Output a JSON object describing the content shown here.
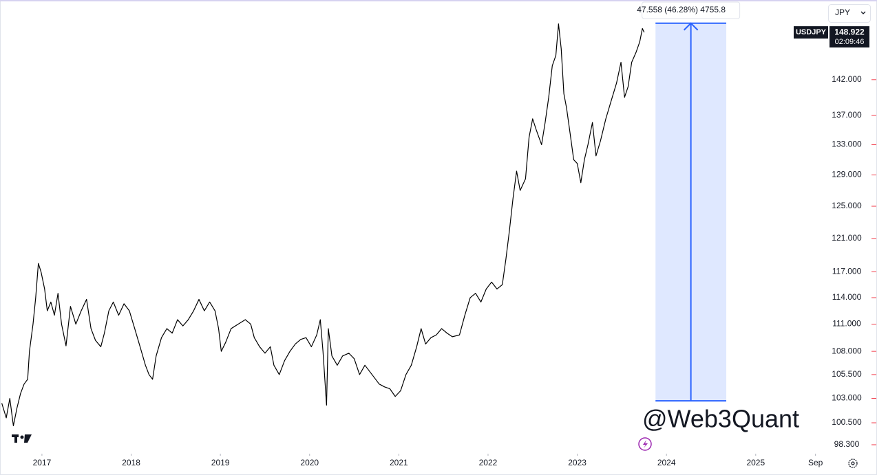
{
  "chart_data": {
    "type": "line",
    "symbol": "USDJPY",
    "currency": "JPY",
    "countdown": "02:09:46",
    "watermark": "@Web3Quant",
    "log_scale": true,
    "x": [
      2016.55,
      2016.6,
      2016.64,
      2016.68,
      2016.72,
      2016.76,
      2016.8,
      2016.84,
      2016.86,
      2016.9,
      2016.93,
      2016.96,
      2016.99,
      2017.03,
      2017.06,
      2017.1,
      2017.14,
      2017.18,
      2017.22,
      2017.27,
      2017.32,
      2017.38,
      2017.44,
      2017.5,
      2017.55,
      2017.6,
      2017.66,
      2017.7,
      2017.75,
      2017.8,
      2017.86,
      2017.92,
      2017.98,
      2018.04,
      2018.1,
      2018.16,
      2018.2,
      2018.24,
      2018.28,
      2018.34,
      2018.4,
      2018.46,
      2018.52,
      2018.58,
      2018.64,
      2018.7,
      2018.76,
      2018.82,
      2018.88,
      2018.94,
      2018.98,
      2019.01,
      2019.06,
      2019.12,
      2019.2,
      2019.28,
      2019.34,
      2019.38,
      2019.44,
      2019.5,
      2019.56,
      2019.6,
      2019.66,
      2019.72,
      2019.78,
      2019.84,
      2019.9,
      2019.96,
      2020.02,
      2020.08,
      2020.12,
      2020.15,
      2020.19,
      2020.21,
      2020.25,
      2020.31,
      2020.37,
      2020.44,
      2020.5,
      2020.56,
      2020.62,
      2020.7,
      2020.78,
      2020.84,
      2020.9,
      2020.96,
      2021.02,
      2021.08,
      2021.14,
      2021.2,
      2021.25,
      2021.3,
      2021.36,
      2021.42,
      2021.48,
      2021.54,
      2021.6,
      2021.68,
      2021.74,
      2021.8,
      2021.86,
      2021.92,
      2021.98,
      2022.04,
      2022.1,
      2022.16,
      2022.2,
      2022.24,
      2022.28,
      2022.32,
      2022.36,
      2022.42,
      2022.46,
      2022.5,
      2022.54,
      2022.6,
      2022.64,
      2022.68,
      2022.72,
      2022.76,
      2022.79,
      2022.82,
      2022.85,
      2022.88,
      2022.92,
      2022.96,
      2023.0,
      2023.04,
      2023.08,
      2023.12,
      2023.17,
      2023.21,
      2023.26,
      2023.32,
      2023.38,
      2023.44,
      2023.49,
      2023.53,
      2023.57,
      2023.61,
      2023.66,
      2023.7,
      2023.73,
      2023.75
    ],
    "series": [
      {
        "name": "USDJPY",
        "color": "#000000",
        "values": [
          102.5,
          101,
          103,
          100.2,
          102,
          103.5,
          104.5,
          105,
          108,
          111,
          114,
          118,
          117,
          115,
          112.5,
          113.5,
          112,
          114.5,
          111,
          108.6,
          113,
          111,
          112.5,
          113.8,
          110.5,
          109.2,
          108.5,
          110,
          112.5,
          113.5,
          112,
          113.3,
          112.5,
          110.5,
          108.5,
          106.5,
          105.5,
          105,
          107.5,
          109.5,
          110.5,
          110,
          111.5,
          110.8,
          111.5,
          112.5,
          113.8,
          112.5,
          113.5,
          112.5,
          110.5,
          108,
          109,
          110.5,
          111,
          111.5,
          111,
          109.5,
          108.5,
          107.8,
          108.5,
          106.5,
          105.5,
          107,
          108,
          108.8,
          109.3,
          109.5,
          108.5,
          109.8,
          111.5,
          108,
          102.3,
          110.5,
          107.5,
          106.5,
          107.5,
          107.8,
          107.2,
          105.5,
          106.5,
          105.5,
          104.5,
          104.2,
          104,
          103.2,
          103.8,
          105.5,
          106.5,
          108.5,
          110.5,
          108.8,
          109.5,
          109.8,
          110.5,
          110,
          109.6,
          109.8,
          112,
          114,
          114.5,
          113.5,
          115,
          115.8,
          115,
          115.5,
          118.5,
          122,
          126,
          129.5,
          127,
          128.5,
          134,
          136.5,
          135,
          133,
          136,
          139.5,
          144,
          145.5,
          150.2,
          146.5,
          140,
          138,
          134.5,
          131,
          130.5,
          128,
          131,
          133,
          136,
          131.5,
          133.5,
          136.5,
          139,
          141.5,
          144.5,
          139.5,
          141,
          144.5,
          146,
          147.5,
          149.5,
          148.922
        ]
      }
    ],
    "xlim": [
      2016.53,
      2025.75
    ],
    "xticks": [
      2017,
      2018,
      2019,
      2020,
      2021,
      2022,
      2023,
      2024,
      2025,
      {
        "value": 2025.67,
        "label": "Sep"
      }
    ],
    "ylim": [
      97.42,
      153.86
    ],
    "yticks": [
      {
        "value": 98.3,
        "label": "98.300"
      },
      {
        "value": 100.5,
        "label": "100.500"
      },
      {
        "value": 103,
        "label": "103.000"
      },
      {
        "value": 105.5,
        "label": "105.500"
      },
      {
        "value": 108,
        "label": "108.000"
      },
      {
        "value": 111,
        "label": "111.000"
      },
      {
        "value": 114,
        "label": "114.000"
      },
      {
        "value": 117,
        "label": "117.000"
      },
      {
        "value": 121,
        "label": "121.000"
      },
      {
        "value": 125,
        "label": "125.000"
      },
      {
        "value": 129,
        "label": "129.000"
      },
      {
        "value": 133,
        "label": "133.000"
      },
      {
        "value": 137,
        "label": "137.000"
      },
      {
        "value": 142,
        "label": "142.000"
      }
    ],
    "measure": {
      "x": [
        2023.877,
        2024.67
      ],
      "from": 102.75,
      "to": 150.308,
      "label": "47.558 (46.28%) 4755.8",
      "color": "#2962ff"
    }
  }
}
